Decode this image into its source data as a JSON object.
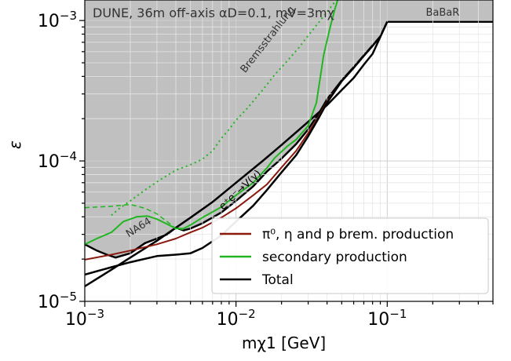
{
  "chart_data": {
    "type": "line",
    "title": "DUNE, 36m off-axis αD=0.1, mV=3mχ",
    "xlabel": "mχ1  [GeV]",
    "ylabel": "ε",
    "xscale": "log",
    "yscale": "log",
    "xlim": [
      0.001,
      0.5
    ],
    "ylim": [
      1e-05,
      0.0014
    ],
    "grid": true,
    "legend_position": "lower-right",
    "x_ticks": [
      {
        "value": 0.001,
        "base": "10",
        "exp": "−3"
      },
      {
        "value": 0.01,
        "base": "10",
        "exp": "−2"
      },
      {
        "value": 0.1,
        "base": "10",
        "exp": "−1"
      }
    ],
    "y_ticks": [
      {
        "value": 1e-05,
        "base": "10",
        "exp": "−5"
      },
      {
        "value": 0.0001,
        "base": "10",
        "exp": "−4"
      },
      {
        "value": 0.001,
        "base": "10",
        "exp": "−3"
      }
    ],
    "excluded_regions": [
      {
        "label": "BaBaR",
        "points": [
          [
            0.001,
            0.00155
          ],
          [
            0.0016,
            0.00155
          ],
          [
            0.001,
            0.00155
          ],
          [
            0.01,
            0.00155
          ],
          [
            0.003,
            0.00155
          ],
          [
            0.04,
            0.00155
          ],
          [
            0.07,
            0.00098
          ],
          [
            0.1,
            0.00098
          ],
          [
            0.2,
            0.00098
          ],
          [
            0.5,
            0.00098
          ],
          [
            0.5,
            0.00155
          ],
          [
            0.001,
            0.00155
          ]
        ],
        "upper": [
          [
            0.001,
            0.00155
          ],
          [
            0.5,
            0.00155
          ]
        ],
        "lower": [
          [
            0.001,
            2.55e-05
          ],
          [
            0.0012,
            2.3e-05
          ],
          [
            0.0014,
            2.15e-05
          ],
          [
            0.0016,
            2.05e-05
          ],
          [
            0.002,
            2.2e-05
          ],
          [
            0.0025,
            2.6e-05
          ],
          [
            0.003,
            2.8e-05
          ],
          [
            0.0035,
            3e-05
          ],
          [
            0.004,
            3.35e-05
          ],
          [
            0.0045,
            3.2e-05
          ],
          [
            0.005,
            3.3e-05
          ],
          [
            0.006,
            3.6e-05
          ],
          [
            0.008,
            4.3e-05
          ],
          [
            0.01,
            5.2e-05
          ],
          [
            0.013,
            6.6e-05
          ],
          [
            0.016,
            8.4e-05
          ],
          [
            0.02,
            0.000104
          ],
          [
            0.025,
            0.000132
          ],
          [
            0.03,
            0.000168
          ],
          [
            0.035,
            0.000215
          ],
          [
            0.04,
            0.000275
          ],
          [
            0.05,
            0.000375
          ],
          [
            0.06,
            0.000465
          ],
          [
            0.07,
            0.000565
          ],
          [
            0.08,
            0.000665
          ],
          [
            0.09,
            0.00077
          ],
          [
            0.1,
            0.00098
          ],
          [
            0.2,
            0.00098
          ],
          [
            0.5,
            0.00098
          ]
        ]
      }
    ],
    "reference_lines": [
      {
        "name": "e+e−→V(γ)",
        "color": "#000000",
        "width": 2.5,
        "dash": "none",
        "points": [
          [
            0.001,
            1.28e-05
          ],
          [
            0.0015,
            1.68e-05
          ],
          [
            0.002,
            2.05e-05
          ],
          [
            0.003,
            2.7e-05
          ],
          [
            0.005,
            3.95e-05
          ],
          [
            0.007,
            5.1e-05
          ],
          [
            0.01,
            7e-05
          ],
          [
            0.015,
            0.0001
          ],
          [
            0.02,
            0.00013
          ],
          [
            0.03,
            0.00019
          ],
          [
            0.04,
            0.00025
          ],
          [
            0.05,
            0.00032
          ],
          [
            0.06,
            0.00039
          ],
          [
            0.07,
            0.000485
          ],
          [
            0.08,
            0.00058
          ],
          [
            0.1,
            0.00098
          ]
        ]
      }
    ],
    "annotations": [
      {
        "text": "BaBaR",
        "x": 0.18,
        "y": 0.00108,
        "rotate": 0
      },
      {
        "text": "Bremsstrahlung",
        "x": 0.0115,
        "y": 0.00042,
        "rotate": -52
      },
      {
        "text": "NA64",
        "x": 0.00195,
        "y": 2.85e-05,
        "rotate": -32
      },
      {
        "text": "e⁺e⁻→V(γ)",
        "x": 0.0082,
        "y": 4.45e-05,
        "rotate": -43
      }
    ],
    "series": [
      {
        "name": "π⁰, η and p brem. production",
        "color": "#8b1a0e",
        "dash": "none",
        "width": 2,
        "points": [
          [
            0.001,
            1.98e-05
          ],
          [
            0.0015,
            2.15e-05
          ],
          [
            0.002,
            2.3e-05
          ],
          [
            0.003,
            2.55e-05
          ],
          [
            0.004,
            2.8e-05
          ],
          [
            0.005,
            3.1e-05
          ],
          [
            0.006,
            3.35e-05
          ],
          [
            0.008,
            3.95e-05
          ],
          [
            0.01,
            4.6e-05
          ],
          [
            0.013,
            5.7e-05
          ],
          [
            0.016,
            6.8e-05
          ],
          [
            0.02,
            9e-05
          ],
          [
            0.025,
            0.000118
          ],
          [
            0.03,
            0.000158
          ],
          [
            0.035,
            0.000205
          ],
          [
            0.04,
            0.000265
          ],
          [
            0.05,
            0.00037
          ],
          [
            0.06,
            0.00046
          ],
          [
            0.07,
            0.00056
          ],
          [
            0.08,
            0.00066
          ],
          [
            0.09,
            0.00077
          ]
        ]
      },
      {
        "name": "secondary production",
        "color": "#22b522",
        "dash": "none",
        "width": 2,
        "points": [
          [
            0.001,
            2.55e-05
          ],
          [
            0.0012,
            2.8e-05
          ],
          [
            0.0015,
            3.1e-05
          ],
          [
            0.0018,
            3.7e-05
          ],
          [
            0.0022,
            4e-05
          ],
          [
            0.0026,
            4.05e-05
          ],
          [
            0.003,
            3.85e-05
          ],
          [
            0.0035,
            3.55e-05
          ],
          [
            0.004,
            3.3e-05
          ],
          [
            0.0045,
            3.3e-05
          ],
          [
            0.005,
            3.5e-05
          ],
          [
            0.006,
            3.95e-05
          ],
          [
            0.008,
            4.7e-05
          ],
          [
            0.01,
            5.7e-05
          ],
          [
            0.013,
            7e-05
          ],
          [
            0.016,
            8.9e-05
          ],
          [
            0.018,
            0.000105
          ],
          [
            0.022,
            0.000128
          ],
          [
            0.025,
            0.000142
          ],
          [
            0.03,
            0.000178
          ],
          [
            0.034,
            0.00026
          ],
          [
            0.038,
            0.00057
          ],
          [
            0.042,
            0.0009
          ],
          [
            0.045,
            0.0012
          ],
          [
            0.048,
            0.0015
          ]
        ]
      },
      {
        "name": "secondary production (Bremsstrahlung)",
        "color": "#22b522",
        "dash": "dotted",
        "width": 2,
        "legend": false,
        "points": [
          [
            0.0015,
            4.1e-05
          ],
          [
            0.0017,
            4.6e-05
          ],
          [
            0.002,
            5.2e-05
          ],
          [
            0.0025,
            6.2e-05
          ],
          [
            0.003,
            7.1e-05
          ],
          [
            0.004,
            8.6e-05
          ],
          [
            0.005,
            9.4e-05
          ],
          [
            0.006,
            0.000103
          ],
          [
            0.007,
            0.000118
          ],
          [
            0.008,
            0.000145
          ],
          [
            0.009,
            0.000168
          ],
          [
            0.01,
            0.000195
          ],
          [
            0.012,
            0.00024
          ],
          [
            0.015,
            0.00032
          ],
          [
            0.018,
            0.00041
          ],
          [
            0.022,
            0.00052
          ],
          [
            0.026,
            0.00064
          ],
          [
            0.03,
            0.00078
          ],
          [
            0.035,
            0.00096
          ],
          [
            0.04,
            0.00115
          ],
          [
            0.046,
            0.0014
          ]
        ]
      },
      {
        "name": "secondary production (low-mass tail)",
        "color": "#22b522",
        "dash": "dashed",
        "width": 1.5,
        "legend": false,
        "points": [
          [
            0.001,
            4.65e-05
          ],
          [
            0.0015,
            4.75e-05
          ],
          [
            0.002,
            4.9e-05
          ],
          [
            0.0025,
            4.6e-05
          ],
          [
            0.003,
            4.2e-05
          ],
          [
            0.0035,
            3.7e-05
          ],
          [
            0.004,
            3.3e-05
          ],
          [
            0.0045,
            3.25e-05
          ]
        ]
      },
      {
        "name": "Total",
        "color": "#000000",
        "dash": "none",
        "width": 2.5,
        "points": [
          [
            0.001,
            1.55e-05
          ],
          [
            0.0015,
            1.75e-05
          ],
          [
            0.002,
            1.9e-05
          ],
          [
            0.003,
            2.1e-05
          ],
          [
            0.004,
            2.15e-05
          ],
          [
            0.005,
            2.2e-05
          ],
          [
            0.006,
            2.4e-05
          ],
          [
            0.008,
            2.95e-05
          ],
          [
            0.01,
            3.7e-05
          ],
          [
            0.013,
            4.8e-05
          ],
          [
            0.016,
            6.2e-05
          ],
          [
            0.02,
            8.3e-05
          ],
          [
            0.025,
            0.00011
          ],
          [
            0.03,
            0.00015
          ],
          [
            0.035,
            0.0002
          ],
          [
            0.04,
            0.00026
          ],
          [
            0.05,
            0.00037
          ],
          [
            0.06,
            0.00046
          ],
          [
            0.07,
            0.00056
          ],
          [
            0.08,
            0.00066
          ],
          [
            0.09,
            0.00077
          ]
        ]
      }
    ],
    "legend": [
      {
        "label": "π⁰, η and p brem. production",
        "color": "#8b1a0e"
      },
      {
        "label": "secondary production",
        "color": "#22b522"
      },
      {
        "label": "Total",
        "color": "#000000"
      }
    ]
  }
}
